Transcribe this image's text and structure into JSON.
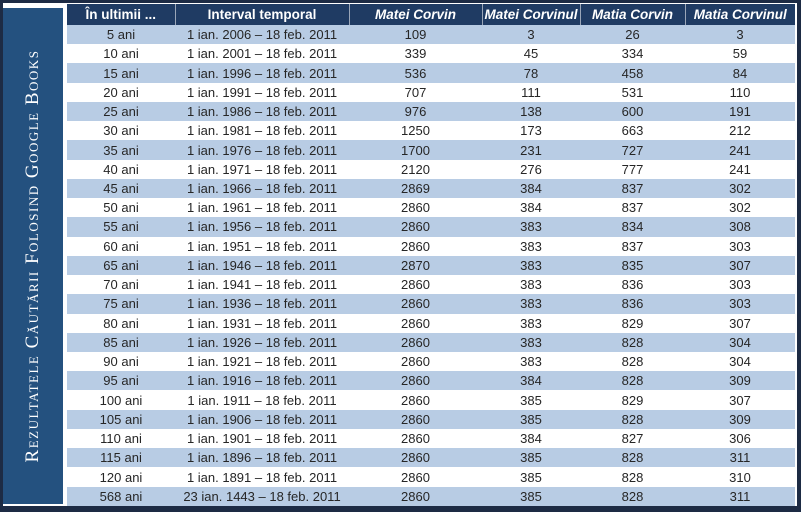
{
  "sidebar": {
    "title": "Rezultatele Căutării Folosind Google Books"
  },
  "table": {
    "columns": [
      "În ultimii ...",
      "Interval temporal",
      "Matei Corvin",
      "Matei Corvinul",
      "Matia Corvin",
      "Matia Corvinul"
    ],
    "rows": [
      [
        "5 ani",
        "1 ian. 2006 – 18 feb. 2011",
        "109",
        "3",
        "26",
        "3"
      ],
      [
        "10 ani",
        "1 ian. 2001 – 18 feb. 2011",
        "339",
        "45",
        "334",
        "59"
      ],
      [
        "15 ani",
        "1 ian. 1996 – 18 feb. 2011",
        "536",
        "78",
        "458",
        "84"
      ],
      [
        "20 ani",
        "1 ian. 1991 – 18 feb. 2011",
        "707",
        "111",
        "531",
        "110"
      ],
      [
        "25 ani",
        "1 ian. 1986 – 18 feb. 2011",
        "976",
        "138",
        "600",
        "191"
      ],
      [
        "30 ani",
        "1 ian. 1981 – 18 feb. 2011",
        "1250",
        "173",
        "663",
        "212"
      ],
      [
        "35 ani",
        "1 ian. 1976 – 18 feb. 2011",
        "1700",
        "231",
        "727",
        "241"
      ],
      [
        "40 ani",
        "1 ian. 1971 – 18 feb. 2011",
        "2120",
        "276",
        "777",
        "241"
      ],
      [
        "45 ani",
        "1 ian. 1966 – 18 feb. 2011",
        "2869",
        "384",
        "837",
        "302"
      ],
      [
        "50 ani",
        "1 ian. 1961 – 18 feb. 2011",
        "2860",
        "384",
        "837",
        "302"
      ],
      [
        "55 ani",
        "1 ian. 1956 – 18 feb. 2011",
        "2860",
        "383",
        "834",
        "308"
      ],
      [
        "60 ani",
        "1 ian. 1951 – 18 feb. 2011",
        "2860",
        "383",
        "837",
        "303"
      ],
      [
        "65 ani",
        "1 ian. 1946 – 18 feb. 2011",
        "2870",
        "383",
        "835",
        "307"
      ],
      [
        "70 ani",
        "1 ian. 1941 – 18 feb. 2011",
        "2860",
        "383",
        "836",
        "303"
      ],
      [
        "75 ani",
        "1 ian. 1936 – 18 feb. 2011",
        "2860",
        "383",
        "836",
        "303"
      ],
      [
        "80 ani",
        "1 ian. 1931 – 18 feb. 2011",
        "2860",
        "383",
        "829",
        "307"
      ],
      [
        "85 ani",
        "1 ian. 1926 – 18 feb. 2011",
        "2860",
        "383",
        "828",
        "304"
      ],
      [
        "90 ani",
        "1 ian. 1921 – 18 feb. 2011",
        "2860",
        "383",
        "828",
        "304"
      ],
      [
        "95 ani",
        "1 ian. 1916 – 18 feb. 2011",
        "2860",
        "384",
        "828",
        "309"
      ],
      [
        "100 ani",
        "1 ian. 1911 – 18 feb. 2011",
        "2860",
        "385",
        "829",
        "307"
      ],
      [
        "105 ani",
        "1 ian. 1906 – 18 feb. 2011",
        "2860",
        "385",
        "828",
        "309"
      ],
      [
        "110 ani",
        "1 ian. 1901 – 18 feb. 2011",
        "2860",
        "384",
        "827",
        "306"
      ],
      [
        "115 ani",
        "1 ian. 1896 – 18 feb. 2011",
        "2860",
        "385",
        "828",
        "311"
      ],
      [
        "120 ani",
        "1 ian. 1891 – 18 feb. 2011",
        "2860",
        "385",
        "828",
        "310"
      ],
      [
        "568 ani",
        "23 ian. 1443 – 18 feb. 2011",
        "2860",
        "385",
        "828",
        "311"
      ]
    ]
  },
  "colors": {
    "border": "#1d2b44",
    "sidebar": "#24517f",
    "header_bg": "#1f3b63",
    "row_alt": "#b8cce4",
    "row_base": "#ffffff",
    "header_text": "#ffffff",
    "cell_text": "#262626"
  }
}
